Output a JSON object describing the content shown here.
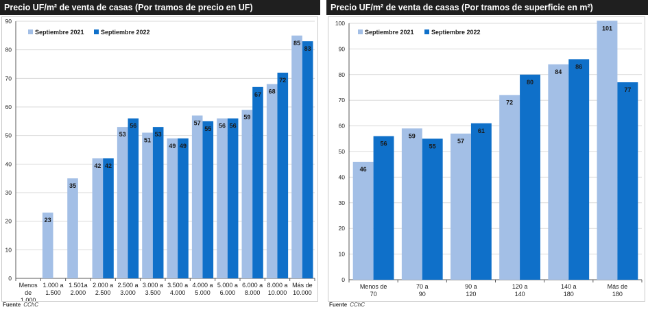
{
  "colors": {
    "series_2021": "#a3bfe6",
    "series_2022": "#0f70c9",
    "gridline": "#d9d9d9",
    "axis": "#595959",
    "text": "#1a1a1a",
    "title_bg": "#1f1f1f"
  },
  "left_chart": {
    "title": "Precio UF/m² de venta de casas (Por tramos de precio en UF)",
    "source_label": "Fuente",
    "source_value": "CChC"
  },
  "right_chart": {
    "title": "Precio UF/m² de venta de casas (Por tramos de superficie en m²)",
    "source_label": "Fuente",
    "source_value": "CChC"
  },
  "chart_data": [
    {
      "type": "bar",
      "title": "Precio UF/m² de venta de casas (Por tramos de precio en UF)",
      "categories": [
        [
          "Menos",
          "de",
          "1.000"
        ],
        [
          "1.000 a",
          "1.500"
        ],
        [
          "1.501a",
          "2.000"
        ],
        [
          "2.000 a",
          "2.500"
        ],
        [
          "2.500 a",
          "3.000"
        ],
        [
          "3.000 a",
          "3.500"
        ],
        [
          "3.500 a",
          "4.000"
        ],
        [
          "4.000 a",
          "5.000"
        ],
        [
          "5.000 a",
          "6.000"
        ],
        [
          "6.000 a",
          "8.000"
        ],
        [
          "8.000 a",
          "10.000"
        ],
        [
          "Más de",
          "10.000"
        ]
      ],
      "series": [
        {
          "name": "Septiembre 2021",
          "values": [
            null,
            23,
            35,
            42,
            53,
            51,
            49,
            57,
            56,
            59,
            68,
            85
          ]
        },
        {
          "name": "Septiembre 2022",
          "values": [
            null,
            null,
            null,
            42,
            56,
            53,
            49,
            55,
            56,
            67,
            72,
            83
          ]
        }
      ],
      "ylim": [
        0,
        90
      ],
      "yticks": [
        0,
        10,
        20,
        30,
        40,
        50,
        60,
        70,
        80,
        90
      ],
      "xlabel": "",
      "ylabel": "",
      "legend_position": "top-left",
      "grid": true
    },
    {
      "type": "bar",
      "title": "Precio UF/m² de venta de casas (Por tramos de superficie en m²)",
      "categories": [
        [
          "Menos de",
          "70"
        ],
        [
          "70 a",
          "90"
        ],
        [
          "90 a",
          "120"
        ],
        [
          "120 a",
          "140"
        ],
        [
          "140 a",
          "180"
        ],
        [
          "Más de",
          "180"
        ]
      ],
      "series": [
        {
          "name": "Septiembre 2021",
          "values": [
            46,
            59,
            57,
            72,
            84,
            101
          ]
        },
        {
          "name": "Septiembre 2022",
          "values": [
            56,
            55,
            61,
            80,
            86,
            77
          ]
        }
      ],
      "ylim": [
        0,
        100
      ],
      "yticks": [
        0,
        10,
        20,
        30,
        40,
        50,
        60,
        70,
        80,
        90,
        100
      ],
      "xlabel": "",
      "ylabel": "",
      "legend_position": "top-left",
      "grid": true
    }
  ]
}
